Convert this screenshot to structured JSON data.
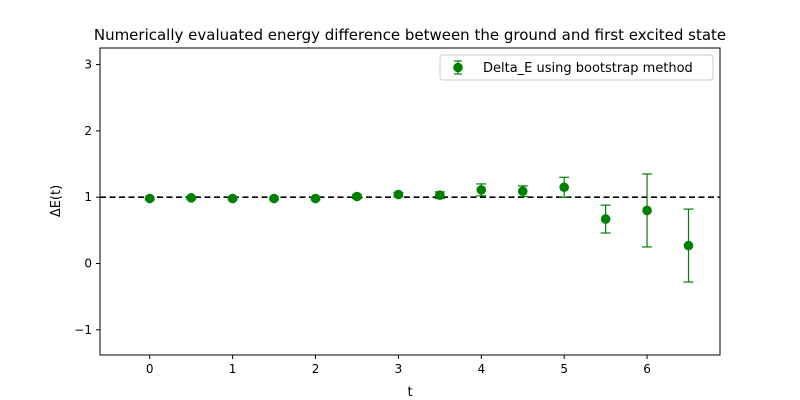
{
  "chart_data": {
    "type": "scatter",
    "title": "Numerically evaluated energy difference between the ground and first excited state",
    "xlabel": "t",
    "ylabel": "ΔE(t)",
    "xlim": [
      -0.6,
      6.88
    ],
    "ylim": [
      -1.38,
      3.25
    ],
    "xticks": [
      0,
      1,
      2,
      3,
      4,
      5,
      6
    ],
    "yticks": [
      -1,
      0,
      1,
      2,
      3
    ],
    "ytick_labels": [
      "−1",
      "0",
      "1",
      "2",
      "3"
    ],
    "grid": false,
    "legend_position": "top-right",
    "reference_line": {
      "y": 1,
      "style": "dashed",
      "color": "#000000"
    },
    "series": [
      {
        "name": "Delta_E using bootstrap method",
        "color": "#008000",
        "marker": "circle",
        "x": [
          0,
          0.5,
          1,
          1.5,
          2,
          2.5,
          3,
          3.5,
          4,
          4.5,
          5,
          5.5,
          6,
          6.5
        ],
        "y": [
          0.98,
          0.99,
          0.98,
          0.98,
          0.98,
          1.01,
          1.04,
          1.03,
          1.11,
          1.09,
          1.15,
          0.67,
          0.8,
          0.27
        ],
        "yerr": [
          0.02,
          0.02,
          0.02,
          0.02,
          0.02,
          0.03,
          0.03,
          0.05,
          0.09,
          0.08,
          0.15,
          0.21,
          0.55,
          0.55
        ]
      }
    ]
  }
}
